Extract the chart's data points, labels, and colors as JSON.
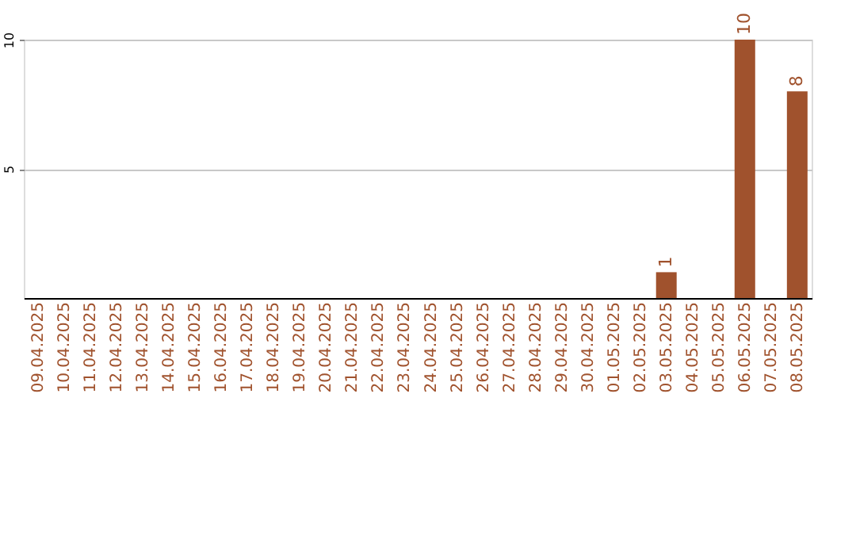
{
  "chart_data": {
    "type": "bar",
    "categories": [
      "09.04.2025",
      "10.04.2025",
      "11.04.2025",
      "12.04.2025",
      "13.04.2025",
      "14.04.2025",
      "15.04.2025",
      "16.04.2025",
      "17.04.2025",
      "18.04.2025",
      "19.04.2025",
      "20.04.2025",
      "21.04.2025",
      "22.04.2025",
      "23.04.2025",
      "24.04.2025",
      "25.04.2025",
      "26.04.2025",
      "27.04.2025",
      "28.04.2025",
      "29.04.2025",
      "30.04.2025",
      "01.05.2025",
      "02.05.2025",
      "03.05.2025",
      "04.05.2025",
      "05.05.2025",
      "06.05.2025",
      "07.05.2025",
      "08.05.2025"
    ],
    "values": [
      0,
      0,
      0,
      0,
      0,
      0,
      0,
      0,
      0,
      0,
      0,
      0,
      0,
      0,
      0,
      0,
      0,
      0,
      0,
      0,
      0,
      0,
      0,
      0,
      1,
      0,
      0,
      10,
      0,
      8
    ],
    "value_labels": [
      null,
      null,
      null,
      null,
      null,
      null,
      null,
      null,
      null,
      null,
      null,
      null,
      null,
      null,
      null,
      null,
      null,
      null,
      null,
      null,
      null,
      null,
      null,
      null,
      "1",
      null,
      null,
      "10",
      null,
      "8"
    ],
    "color": "#a0522d",
    "ylim": [
      0,
      10
    ],
    "yticks": [
      5,
      10
    ],
    "grid": "y"
  }
}
